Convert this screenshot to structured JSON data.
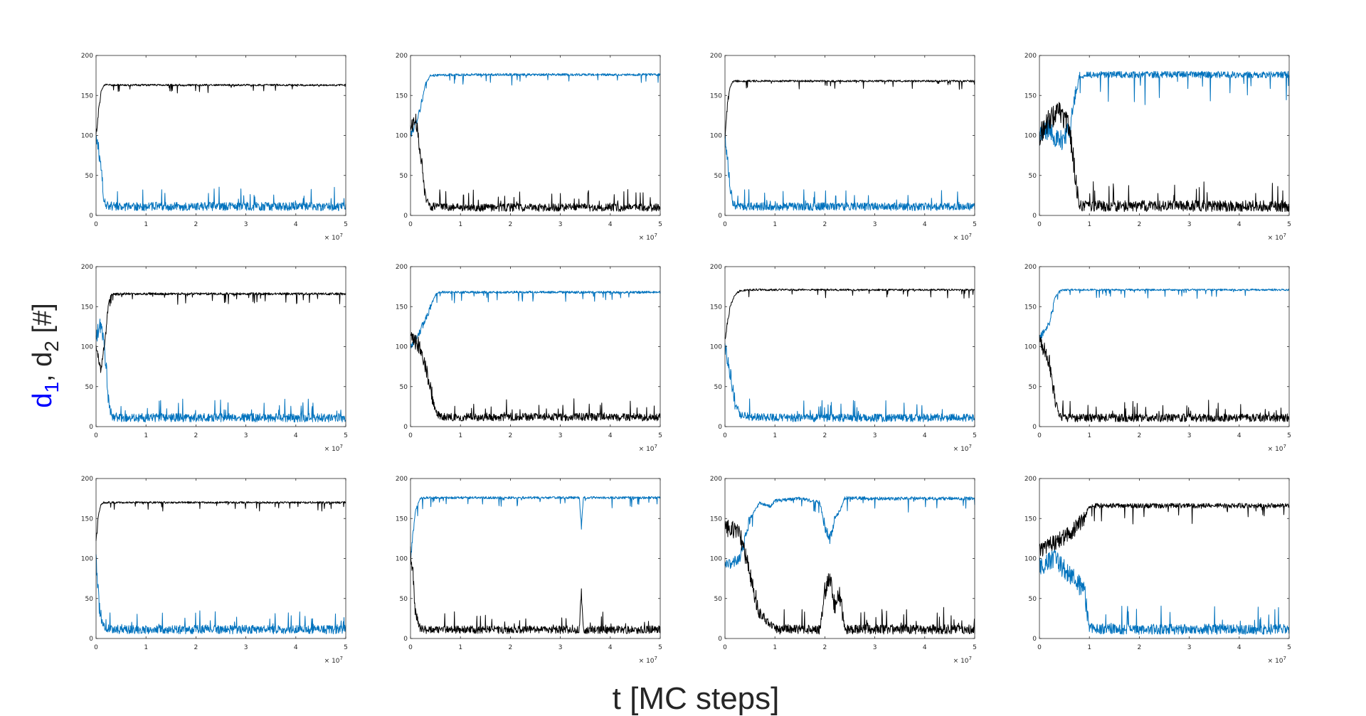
{
  "figure": {
    "xlabel": "t [MC steps]",
    "ylabel_parts": [
      "d",
      "1",
      ",",
      " d",
      "2",
      " [#]"
    ],
    "ylabel_colors": [
      "#0000ff",
      "#0000ff",
      "#262626",
      "#262626",
      "#262626",
      "#262626"
    ],
    "multiplier_base": "× 10",
    "multiplier_exp": "7"
  },
  "colors": {
    "d1": "#0072bd",
    "d2": "#000000",
    "axes": "#262626"
  },
  "chart_data": [
    {
      "type": "line",
      "panel": 1,
      "xlim": [
        0,
        5
      ],
      "ylim": [
        0,
        200
      ],
      "xticks": [
        0,
        1,
        2,
        3,
        4,
        5
      ],
      "yticks": [
        0,
        50,
        100,
        150,
        200
      ],
      "x_multiplier": "×10^7",
      "series": [
        {
          "key": "d1",
          "color": "#0072bd",
          "x": [
            0,
            0.05,
            0.1,
            0.15,
            0.2,
            0.5,
            1,
            2,
            3,
            4,
            5
          ],
          "y": [
            90,
            85,
            60,
            20,
            10,
            9,
            9,
            9,
            9,
            9,
            9
          ],
          "noise": 11
        },
        {
          "key": "d2",
          "color": "#000000",
          "x": [
            0,
            0.05,
            0.1,
            0.15,
            0.2,
            0.5,
            1,
            2,
            3,
            4,
            5
          ],
          "y": [
            100,
            130,
            155,
            162,
            163,
            163,
            163,
            163,
            163,
            163,
            163
          ],
          "noise": 4
        }
      ]
    },
    {
      "type": "line",
      "panel": 2,
      "xlim": [
        0,
        5
      ],
      "ylim": [
        0,
        200
      ],
      "xticks": [
        0,
        1,
        2,
        3,
        4,
        5
      ],
      "yticks": [
        0,
        50,
        100,
        150,
        200
      ],
      "x_multiplier": "×10^7",
      "series": [
        {
          "key": "d1",
          "color": "#0072bd",
          "x": [
            0,
            0.1,
            0.2,
            0.3,
            0.4,
            1,
            2,
            3,
            4,
            5
          ],
          "y": [
            100,
            115,
            135,
            165,
            175,
            176,
            176,
            176,
            176,
            176
          ],
          "noise": 5
        },
        {
          "key": "d2",
          "color": "#000000",
          "x": [
            0,
            0.1,
            0.2,
            0.3,
            0.4,
            1,
            2,
            3,
            4,
            5
          ],
          "y": [
            110,
            120,
            80,
            20,
            9,
            8,
            8,
            8,
            8,
            8
          ],
          "noise": 10
        }
      ]
    },
    {
      "type": "line",
      "panel": 3,
      "xlim": [
        0,
        5
      ],
      "ylim": [
        0,
        200
      ],
      "xticks": [
        0,
        1,
        2,
        3,
        4,
        5
      ],
      "yticks": [
        0,
        50,
        100,
        150,
        200
      ],
      "x_multiplier": "×10^7",
      "series": [
        {
          "key": "d1",
          "color": "#0072bd",
          "x": [
            0,
            0.05,
            0.1,
            0.15,
            0.2,
            0.5,
            1,
            2,
            3,
            4,
            5
          ],
          "y": [
            100,
            70,
            40,
            15,
            10,
            9,
            9,
            9,
            9,
            9,
            9
          ],
          "noise": 10
        },
        {
          "key": "d2",
          "color": "#000000",
          "x": [
            0,
            0.05,
            0.1,
            0.15,
            0.2,
            0.5,
            1,
            2,
            3,
            4,
            5
          ],
          "y": [
            95,
            140,
            160,
            167,
            168,
            168,
            168,
            168,
            168,
            168,
            168
          ],
          "noise": 4
        }
      ]
    },
    {
      "type": "line",
      "panel": 4,
      "xlim": [
        0,
        5
      ],
      "ylim": [
        0,
        200
      ],
      "xticks": [
        0,
        1,
        2,
        3,
        4,
        5
      ],
      "yticks": [
        0,
        50,
        100,
        150,
        200
      ],
      "x_multiplier": "×10^7",
      "series": [
        {
          "key": "d1",
          "color": "#0072bd",
          "x": [
            0,
            0.2,
            0.4,
            0.6,
            0.7,
            0.8,
            1,
            2,
            3,
            4,
            5
          ],
          "y": [
            100,
            110,
            90,
            110,
            140,
            175,
            176,
            176,
            176,
            176,
            176
          ],
          "noise": 14
        },
        {
          "key": "d2",
          "color": "#000000",
          "x": [
            0,
            0.2,
            0.4,
            0.6,
            0.7,
            0.8,
            1,
            2,
            3,
            4,
            5
          ],
          "y": [
            100,
            120,
            130,
            110,
            60,
            9,
            9,
            9,
            9,
            9,
            9
          ],
          "noise": 14
        }
      ]
    },
    {
      "type": "line",
      "panel": 5,
      "xlim": [
        0,
        5
      ],
      "ylim": [
        0,
        200
      ],
      "xticks": [
        0,
        1,
        2,
        3,
        4,
        5
      ],
      "yticks": [
        0,
        50,
        100,
        150,
        200
      ],
      "x_multiplier": "×10^7",
      "series": [
        {
          "key": "d1",
          "color": "#0072bd",
          "x": [
            0,
            0.1,
            0.2,
            0.25,
            0.3,
            0.5,
            1,
            2,
            3,
            4,
            5
          ],
          "y": [
            110,
            130,
            80,
            30,
            10,
            9,
            9,
            9,
            9,
            9,
            9
          ],
          "noise": 11
        },
        {
          "key": "d2",
          "color": "#000000",
          "x": [
            0,
            0.1,
            0.2,
            0.25,
            0.3,
            0.5,
            1,
            2,
            3,
            4,
            5
          ],
          "y": [
            100,
            70,
            120,
            155,
            165,
            166,
            166,
            166,
            166,
            166,
            166
          ],
          "noise": 5
        }
      ]
    },
    {
      "type": "line",
      "panel": 6,
      "xlim": [
        0,
        5
      ],
      "ylim": [
        0,
        200
      ],
      "xticks": [
        0,
        1,
        2,
        3,
        4,
        5
      ],
      "yticks": [
        0,
        50,
        100,
        150,
        200
      ],
      "x_multiplier": "×10^7",
      "series": [
        {
          "key": "d1",
          "color": "#0072bd",
          "x": [
            0,
            0.2,
            0.4,
            0.5,
            0.6,
            1,
            2,
            3,
            4,
            5
          ],
          "y": [
            100,
            120,
            150,
            165,
            168,
            168,
            168,
            168,
            168,
            168
          ],
          "noise": 5
        },
        {
          "key": "d2",
          "color": "#000000",
          "x": [
            0,
            0.2,
            0.4,
            0.5,
            0.6,
            1,
            2,
            3,
            4,
            5
          ],
          "y": [
            110,
            100,
            50,
            15,
            10,
            10,
            10,
            10,
            10,
            10
          ],
          "noise": 10
        }
      ]
    },
    {
      "type": "line",
      "panel": 7,
      "xlim": [
        0,
        5
      ],
      "ylim": [
        0,
        200
      ],
      "xticks": [
        0,
        1,
        2,
        3,
        4,
        5
      ],
      "yticks": [
        0,
        50,
        100,
        150,
        200
      ],
      "x_multiplier": "×10^7",
      "series": [
        {
          "key": "d1",
          "color": "#0072bd",
          "x": [
            0,
            0.1,
            0.2,
            0.3,
            0.5,
            1,
            2,
            3,
            4,
            5
          ],
          "y": [
            100,
            70,
            30,
            12,
            10,
            9,
            9,
            9,
            9,
            9
          ],
          "noise": 10
        },
        {
          "key": "d2",
          "color": "#000000",
          "x": [
            0,
            0.1,
            0.2,
            0.3,
            0.5,
            1,
            2,
            3,
            4,
            5
          ],
          "y": [
            110,
            150,
            165,
            170,
            171,
            171,
            171,
            171,
            171,
            171
          ],
          "noise": 4
        }
      ]
    },
    {
      "type": "line",
      "panel": 8,
      "xlim": [
        0,
        5
      ],
      "ylim": [
        0,
        200
      ],
      "xticks": [
        0,
        1,
        2,
        3,
        4,
        5
      ],
      "yticks": [
        0,
        50,
        100,
        150,
        200
      ],
      "x_multiplier": "×10^7",
      "series": [
        {
          "key": "d1",
          "color": "#0072bd",
          "x": [
            0,
            0.2,
            0.3,
            0.4,
            0.5,
            1,
            2,
            3,
            4,
            5
          ],
          "y": [
            110,
            130,
            160,
            170,
            171,
            171,
            171,
            171,
            171,
            171
          ],
          "noise": 4
        },
        {
          "key": "d2",
          "color": "#000000",
          "x": [
            0,
            0.2,
            0.3,
            0.4,
            0.5,
            1,
            2,
            3,
            4,
            5
          ],
          "y": [
            110,
            80,
            40,
            10,
            9,
            9,
            9,
            9,
            9,
            9
          ],
          "noise": 10
        }
      ]
    },
    {
      "type": "line",
      "panel": 9,
      "xlim": [
        0,
        5
      ],
      "ylim": [
        0,
        200
      ],
      "xticks": [
        0,
        1,
        2,
        3,
        4,
        5
      ],
      "yticks": [
        0,
        50,
        100,
        150,
        200
      ],
      "x_multiplier": "×10^7",
      "series": [
        {
          "key": "d1",
          "color": "#0072bd",
          "x": [
            0,
            0.05,
            0.1,
            0.15,
            0.2,
            0.5,
            1,
            2,
            3,
            4,
            5
          ],
          "y": [
            100,
            50,
            20,
            12,
            10,
            9,
            9,
            9,
            9,
            9,
            9
          ],
          "noise": 11
        },
        {
          "key": "d2",
          "color": "#000000",
          "x": [
            0,
            0.05,
            0.1,
            0.15,
            0.2,
            0.5,
            1,
            2,
            3,
            4,
            5
          ],
          "y": [
            120,
            155,
            168,
            170,
            170,
            170,
            170,
            170,
            170,
            170,
            170
          ],
          "noise": 4
        }
      ]
    },
    {
      "type": "line",
      "panel": 10,
      "xlim": [
        0,
        5
      ],
      "ylim": [
        0,
        200
      ],
      "xticks": [
        0,
        1,
        2,
        3,
        4,
        5
      ],
      "yticks": [
        0,
        50,
        100,
        150,
        200
      ],
      "x_multiplier": "×10^7",
      "series": [
        {
          "key": "d1",
          "color": "#0072bd",
          "x": [
            0,
            0.05,
            0.1,
            0.2,
            0.3,
            1,
            2,
            3,
            3.38,
            3.42,
            3.46,
            3.55,
            4,
            5
          ],
          "y": [
            100,
            130,
            160,
            175,
            176,
            176,
            176,
            176,
            176,
            140,
            176,
            176,
            176,
            176
          ],
          "noise": 5
        },
        {
          "key": "d2",
          "color": "#000000",
          "x": [
            0,
            0.05,
            0.1,
            0.2,
            0.3,
            1,
            2,
            3,
            3.38,
            3.42,
            3.46,
            3.55,
            4,
            5
          ],
          "y": [
            110,
            80,
            30,
            10,
            9,
            9,
            9,
            9,
            9,
            60,
            9,
            9,
            9,
            9
          ],
          "noise": 10
        }
      ]
    },
    {
      "type": "line",
      "panel": 11,
      "xlim": [
        0,
        5
      ],
      "ylim": [
        0,
        200
      ],
      "xticks": [
        0,
        1,
        2,
        3,
        4,
        5
      ],
      "yticks": [
        0,
        50,
        100,
        150,
        200
      ],
      "x_multiplier": "×10^7",
      "series": [
        {
          "key": "d1",
          "color": "#0072bd",
          "x": [
            0,
            0.3,
            0.5,
            0.7,
            0.9,
            1.0,
            1.5,
            1.9,
            2.0,
            2.1,
            2.2,
            2.3,
            2.4,
            3,
            4,
            5
          ],
          "y": [
            90,
            100,
            150,
            170,
            165,
            172,
            175,
            170,
            140,
            125,
            150,
            160,
            176,
            175,
            175,
            175
          ],
          "noise": 7
        },
        {
          "key": "d2",
          "color": "#000000",
          "x": [
            0,
            0.3,
            0.5,
            0.7,
            0.9,
            1.0,
            1.5,
            1.9,
            2.0,
            2.1,
            2.2,
            2.3,
            2.4,
            3,
            4,
            5
          ],
          "y": [
            140,
            130,
            80,
            30,
            15,
            9,
            9,
            9,
            60,
            75,
            40,
            55,
            9,
            9,
            9,
            9
          ],
          "noise": 12
        }
      ]
    },
    {
      "type": "line",
      "panel": 12,
      "xlim": [
        0,
        5
      ],
      "ylim": [
        0,
        200
      ],
      "xticks": [
        0,
        1,
        2,
        3,
        4,
        5
      ],
      "yticks": [
        0,
        50,
        100,
        150,
        200
      ],
      "x_multiplier": "×10^7",
      "series": [
        {
          "key": "d1",
          "color": "#0072bd",
          "x": [
            0,
            0.3,
            0.6,
            0.9,
            1.0,
            1.5,
            2,
            3,
            4,
            5
          ],
          "y": [
            90,
            100,
            80,
            60,
            10,
            9,
            9,
            9,
            9,
            9
          ],
          "noise": 13
        },
        {
          "key": "d2",
          "color": "#000000",
          "x": [
            0,
            0.3,
            0.6,
            0.9,
            1.0,
            1.5,
            2,
            3,
            4,
            5
          ],
          "y": [
            110,
            120,
            130,
            150,
            166,
            166,
            166,
            166,
            166,
            166
          ],
          "noise": 10
        }
      ]
    }
  ]
}
